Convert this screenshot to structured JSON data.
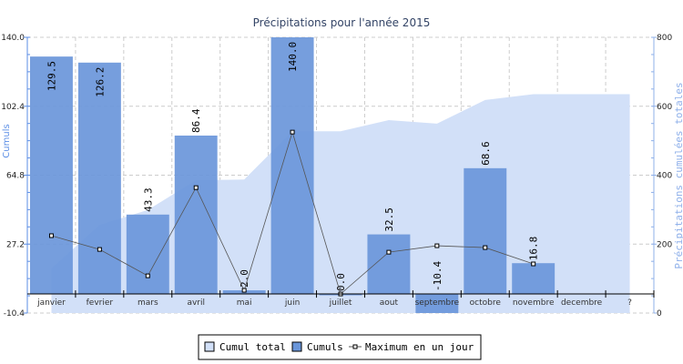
{
  "chart_data": {
    "type": "bar",
    "title": "Précipitations pour l'année 2015",
    "ylabel": "Cumuls",
    "y2label": "Précipitations cumulées totales",
    "categories": [
      "janvier",
      "fevrier",
      "mars",
      "avril",
      "mai",
      "juin",
      "juillet",
      "aout",
      "septembre",
      "octobre",
      "novembre",
      "decembre",
      "?"
    ],
    "ylim": [
      -10.4,
      140.0
    ],
    "yticks": [
      "140.0",
      "102.4",
      "64.8",
      "27.2",
      "-10.4"
    ],
    "y2lim": [
      0,
      800
    ],
    "y2ticks": [
      "800",
      "600",
      "400",
      "200",
      "0"
    ],
    "grid": true,
    "legend_placement": "bottom",
    "series": [
      {
        "name": "Cumul total",
        "type": "area",
        "axis": "right",
        "color": "#d2e0f8",
        "values": [
          129.5,
          255.7,
          299.0,
          385.4,
          387.4,
          527.4,
          527.4,
          559.9,
          549.5,
          618.1,
          634.9,
          634.9,
          634.9
        ]
      },
      {
        "name": "Cumuls",
        "type": "bar",
        "axis": "left",
        "color": "#6a96da",
        "values": [
          129.5,
          126.2,
          43.3,
          86.4,
          2.0,
          140.0,
          0.0,
          32.5,
          -10.4,
          68.6,
          16.8,
          null,
          null
        ],
        "labels": [
          "129.5",
          "126.2",
          "43.3",
          "86.4",
          "2.0",
          "140.0",
          "0.0",
          "32.5",
          "-10.4",
          "68.6",
          "16.8",
          "",
          ""
        ]
      },
      {
        "name": "Maximum en un jour",
        "type": "line",
        "axis": "left",
        "color": "#555555",
        "values": [
          31.8,
          24.3,
          9.9,
          58.0,
          2.0,
          88.3,
          0.0,
          22.8,
          26.3,
          25.3,
          16.4,
          null,
          null
        ]
      }
    ]
  }
}
